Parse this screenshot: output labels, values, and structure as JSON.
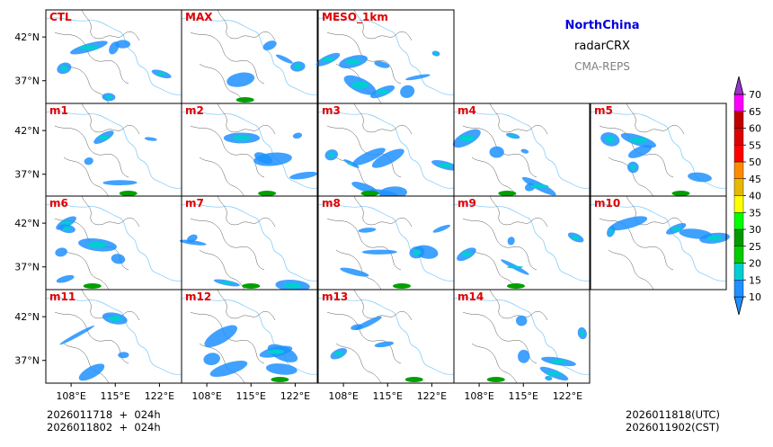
{
  "header": {
    "region": "NorthChina",
    "variable": "radarCRX",
    "system": "CMA-REPS"
  },
  "time": {
    "left": [
      "2026011718  +  024h",
      "2026011802  +  024h"
    ],
    "right": [
      "2026011818(UTC)",
      "2026011902(CST)"
    ]
  },
  "chart_data": {
    "type": "heatmap",
    "title": "NorthChina radarCRX CMA-REPS",
    "xlabel": "",
    "ylabel": "",
    "panels": [
      "CTL",
      "MAX",
      "MESO_1km",
      "m1",
      "m2",
      "m3",
      "m4",
      "m5",
      "m6",
      "m7",
      "m8",
      "m9",
      "m10",
      "m11",
      "m12",
      "m13",
      "m14"
    ],
    "x_ticks": [
      "108°E",
      "115°E",
      "122°E"
    ],
    "x_tick_values": [
      108,
      115,
      122
    ],
    "y_ticks": [
      "42°N",
      "37°N"
    ],
    "y_tick_values": [
      42,
      37
    ],
    "colorbar": {
      "levels": [
        10,
        15,
        20,
        25,
        30,
        35,
        40,
        45,
        50,
        55,
        60,
        65,
        70
      ],
      "labels": [
        "10",
        "15",
        "20",
        "25",
        "30",
        "35",
        "40",
        "45",
        "50",
        "55",
        "60",
        "65",
        "70"
      ],
      "colors": [
        "#1e90ff",
        "#00ced1",
        "#00cc00",
        "#009a00",
        "#00ff00",
        "#ffff00",
        "#e6b800",
        "#ff8c00",
        "#ff0000",
        "#dd0000",
        "#c00000",
        "#ff00ff",
        "#9933cc",
        "#a08cd8"
      ],
      "extend": "both"
    }
  }
}
